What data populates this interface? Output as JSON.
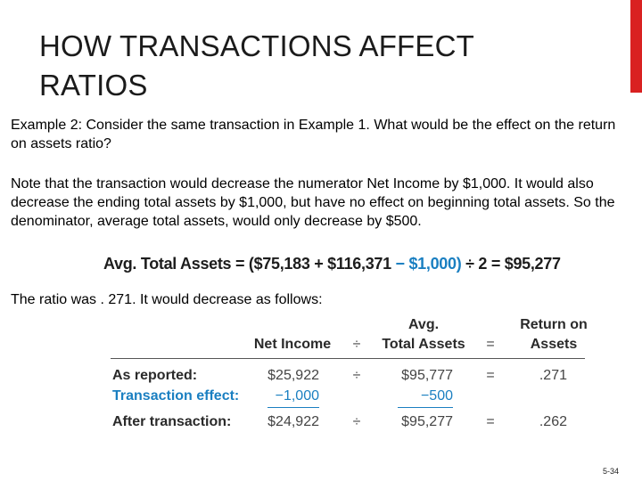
{
  "title": "HOW TRANSACTIONS AFFECT RATIOS",
  "paragraph1": "Example 2: Consider the same transaction in Example 1. What would be the effect on the return on assets ratio?",
  "paragraph2": "Note that the transaction would decrease the numerator Net Income by $1,000. It would also decrease the ending total assets by $1,000, but have no effect on beginning total assets. So the denominator, average total assets, would only decrease by $500.",
  "formula": {
    "lhs": "Avg. Total Assets = ($75,183 + $116,371 ",
    "highlight": "− $1,000)",
    "rhs": " ÷ 2 = $95,277"
  },
  "paragraph3": "The ratio was . 271. It would decrease as follows:",
  "table": {
    "header_avg": "Avg.",
    "header_return_on": "Return on",
    "header_net_income": "Net Income",
    "header_total_assets": "Total Assets",
    "header_assets": "Assets",
    "header_div": "÷",
    "header_eq": "=",
    "rows": [
      {
        "label": "As reported:",
        "net_income": "$25,922",
        "div": "÷",
        "avg_assets": "$95,777",
        "eq": "=",
        "roa": ".271"
      },
      {
        "label": "Transaction effect:",
        "net_income": "−1,000",
        "div": "",
        "avg_assets": "−500",
        "eq": "",
        "roa": ""
      },
      {
        "label": "After transaction:",
        "net_income": "$24,922",
        "div": "÷",
        "avg_assets": "$95,277",
        "eq": "=",
        "roa": ".262"
      }
    ]
  },
  "page_number": "5-34",
  "colors": {
    "accent_red": "#d92121",
    "highlight_blue": "#1a7fc1"
  }
}
